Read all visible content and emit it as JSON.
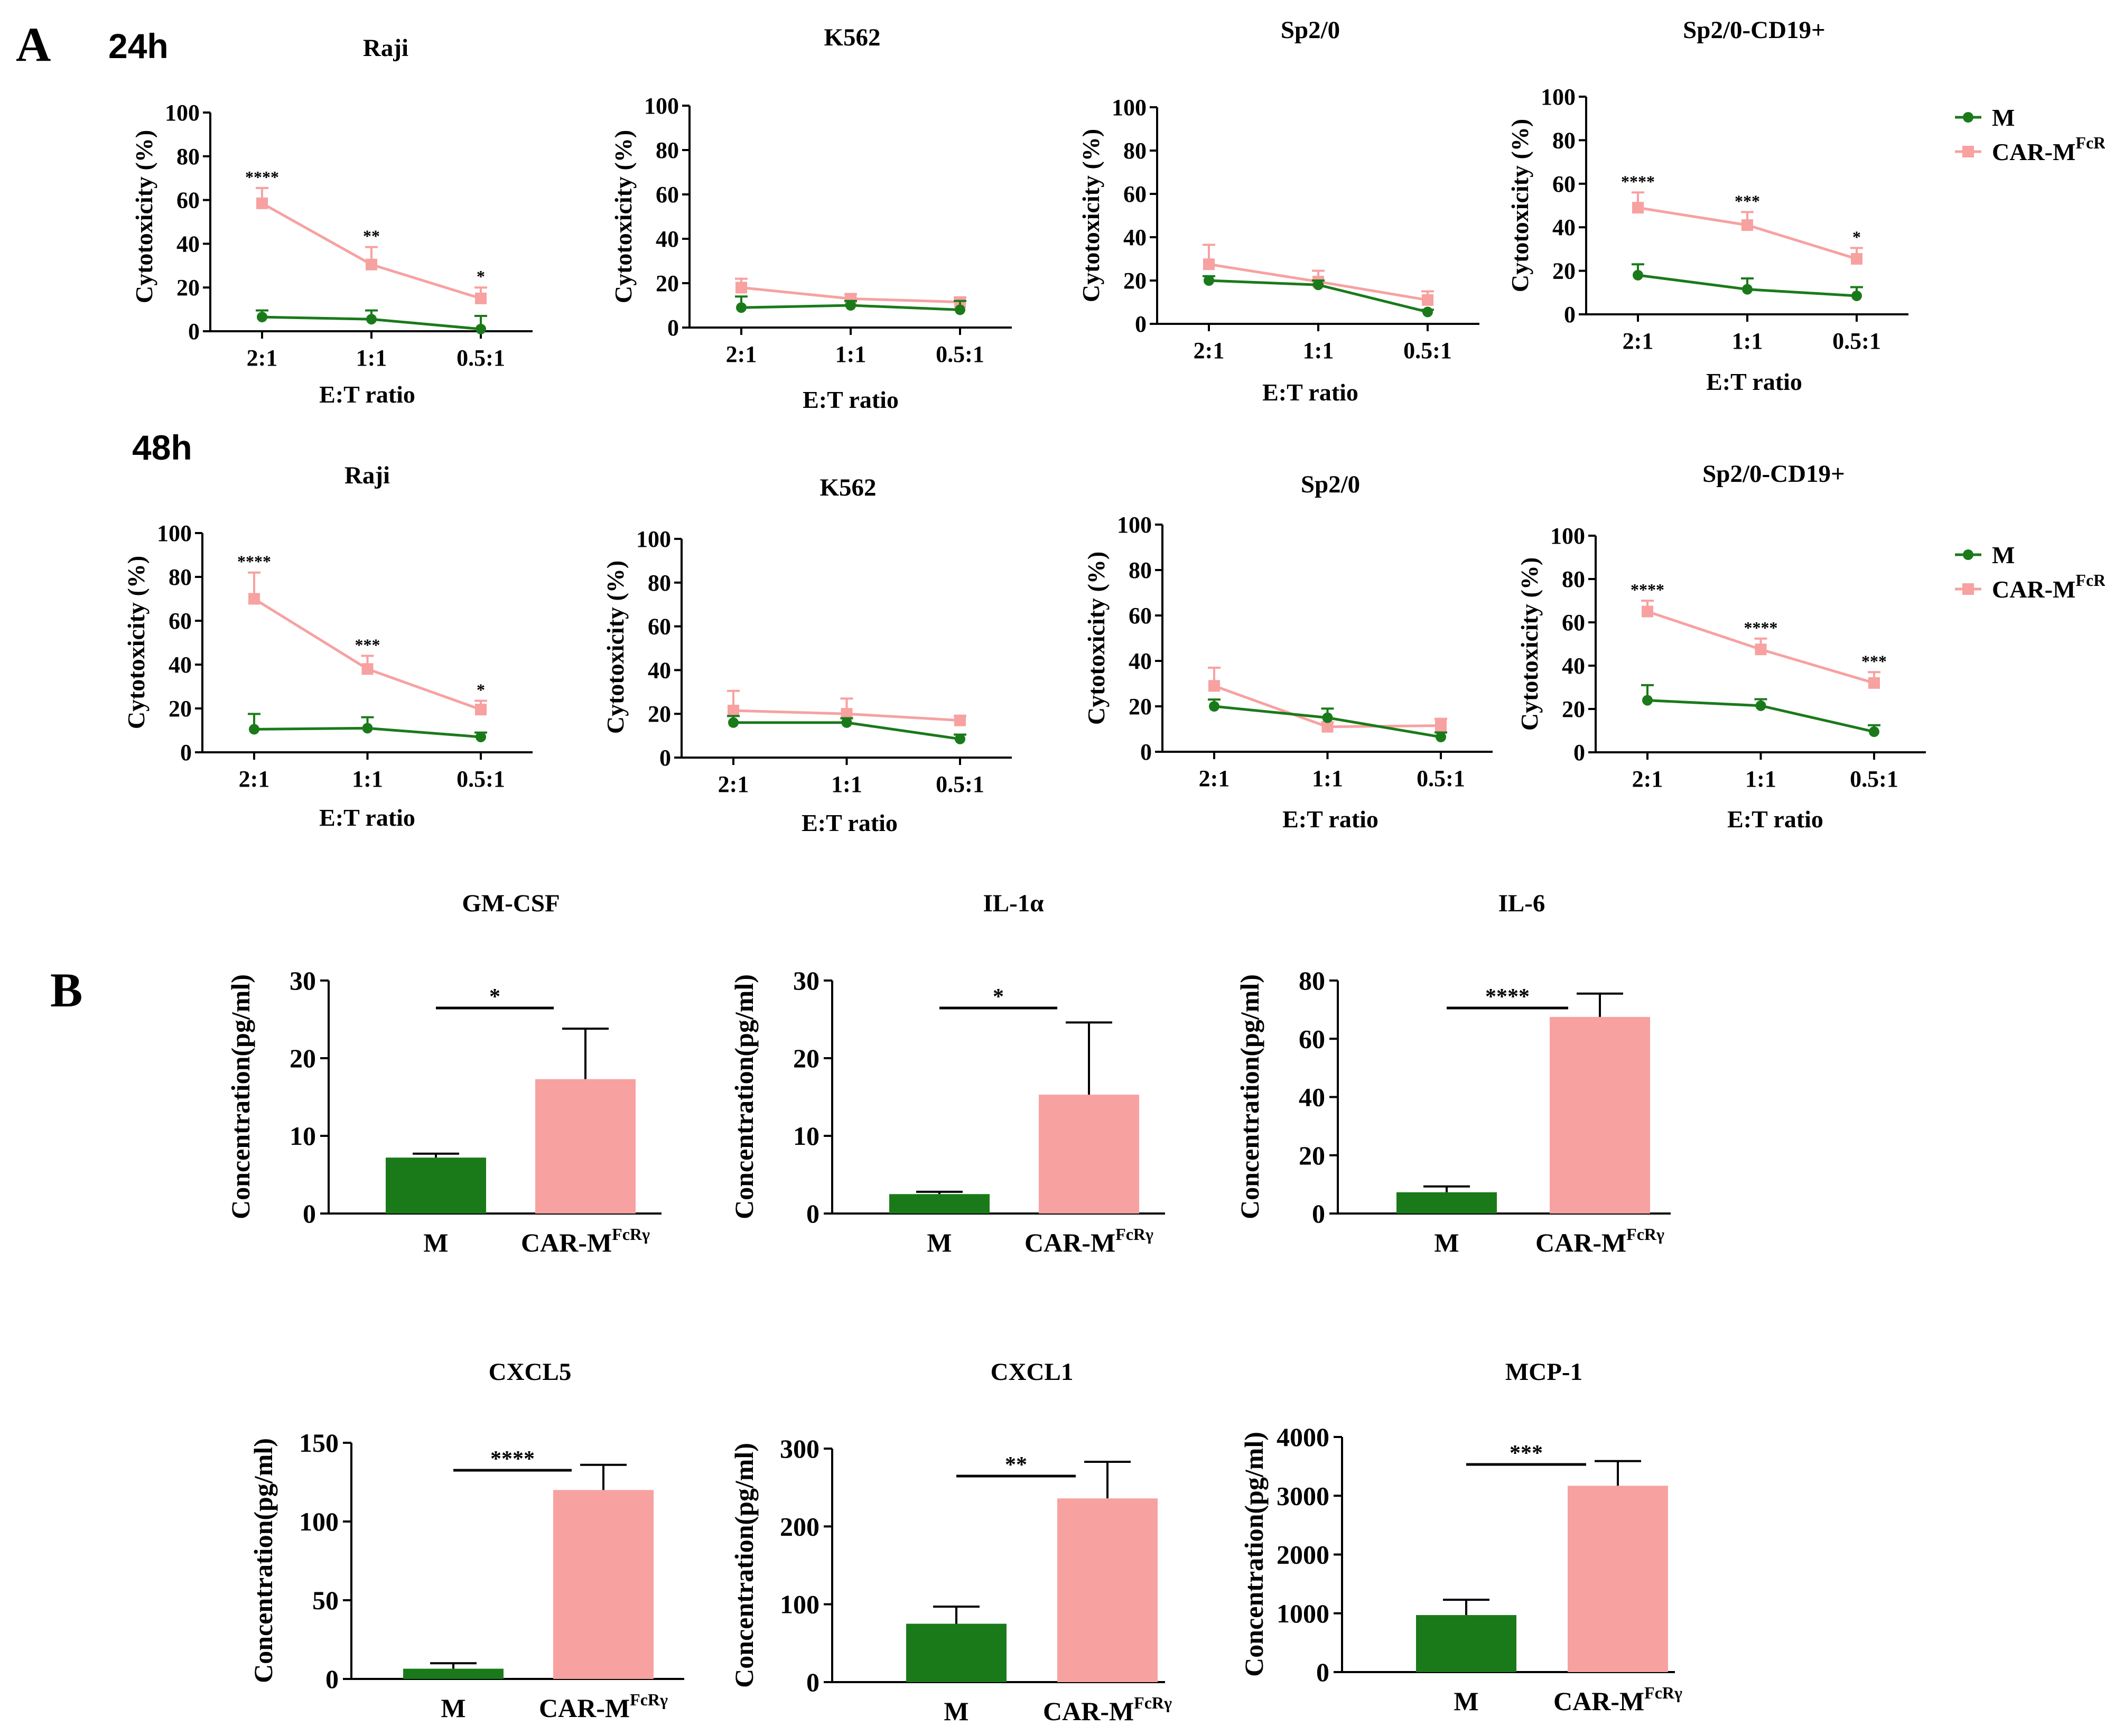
{
  "figure": {
    "panel_a_label": "A",
    "panel_b_label": "B",
    "time_24h": "24h",
    "time_48h": "48h"
  },
  "colors": {
    "M": "#1a7a1a",
    "CAR": "#f7a1a1",
    "axis": "#000000"
  },
  "legend": {
    "M": "M",
    "CAR_prefix": "CAR-M",
    "CAR_superscript": "FcRγ"
  },
  "chart_data": [
    {
      "type": "line",
      "id": "l24_raji",
      "time": "24h",
      "title": "Raji",
      "categories": [
        "2:1",
        "1:1",
        "0.5:1"
      ],
      "xlabel": "E:T ratio",
      "ylabel": "Cytotoxicity (%)",
      "ylim": [
        0,
        100
      ],
      "yticks": [
        0,
        20,
        40,
        60,
        80,
        100
      ],
      "series": [
        {
          "name": "M",
          "values": [
            6.5,
            5.5,
            1.0
          ],
          "errors": [
            3,
            4,
            6
          ]
        },
        {
          "name": "CAR-M",
          "values": [
            58.5,
            30.5,
            15.0
          ],
          "errors": [
            7,
            8,
            5
          ]
        }
      ],
      "significance": [
        "****",
        "**",
        "*"
      ],
      "legend": false
    },
    {
      "type": "line",
      "id": "l24_k562",
      "time": "24h",
      "title": "K562",
      "categories": [
        "2:1",
        "1:1",
        "0.5:1"
      ],
      "xlabel": "E:T ratio",
      "ylabel": "Cytotoxicity (%)",
      "ylim": [
        0,
        100
      ],
      "yticks": [
        0,
        20,
        40,
        60,
        80,
        100
      ],
      "series": [
        {
          "name": "M",
          "values": [
            9,
            10,
            8
          ],
          "errors": [
            5,
            2,
            4
          ]
        },
        {
          "name": "CAR-M",
          "values": [
            18,
            13,
            11.5
          ],
          "errors": [
            4,
            2,
            2
          ]
        }
      ],
      "significance": [],
      "legend": false
    },
    {
      "type": "line",
      "id": "l24_sp20",
      "time": "24h",
      "title": "Sp2/0",
      "categories": [
        "2:1",
        "1:1",
        "0.5:1"
      ],
      "xlabel": "E:T ratio",
      "ylabel": "Cytotoxicity (%)",
      "ylim": [
        0,
        100
      ],
      "yticks": [
        0,
        20,
        40,
        60,
        80,
        100
      ],
      "series": [
        {
          "name": "M",
          "values": [
            20,
            18,
            5.5
          ],
          "errors": [
            2,
            2,
            1
          ]
        },
        {
          "name": "CAR-M",
          "values": [
            27.5,
            19.5,
            11
          ],
          "errors": [
            9,
            5,
            4
          ]
        }
      ],
      "significance": [],
      "legend": false
    },
    {
      "type": "line",
      "id": "l24_sp20cd19",
      "time": "24h",
      "title": "Sp2/0-CD19+",
      "categories": [
        "2:1",
        "1:1",
        "0.5:1"
      ],
      "xlabel": "E:T ratio",
      "ylabel": "Cytotoxicity (%)",
      "ylim": [
        0,
        100
      ],
      "yticks": [
        0,
        20,
        40,
        60,
        80,
        100
      ],
      "series": [
        {
          "name": "M",
          "values": [
            18,
            11.5,
            8.5
          ],
          "errors": [
            5,
            5,
            4
          ]
        },
        {
          "name": "CAR-M",
          "values": [
            49,
            41,
            25.5
          ],
          "errors": [
            7,
            6,
            5
          ]
        }
      ],
      "significance": [
        "****",
        "***",
        "*"
      ],
      "legend": true
    },
    {
      "type": "line",
      "id": "l48_raji",
      "time": "48h",
      "title": "Raji",
      "categories": [
        "2:1",
        "1:1",
        "0.5:1"
      ],
      "xlabel": "E:T ratio",
      "ylabel": "Cytotoxicity (%)",
      "ylim": [
        0,
        100
      ],
      "yticks": [
        0,
        20,
        40,
        60,
        80,
        100
      ],
      "series": [
        {
          "name": "M",
          "values": [
            10.5,
            11,
            7
          ],
          "errors": [
            7,
            5,
            2
          ]
        },
        {
          "name": "CAR-M",
          "values": [
            70,
            38,
            19.5
          ],
          "errors": [
            12,
            6,
            4
          ]
        }
      ],
      "significance": [
        "****",
        "***",
        "*"
      ],
      "legend": false
    },
    {
      "type": "line",
      "id": "l48_k562",
      "time": "48h",
      "title": "K562",
      "categories": [
        "2:1",
        "1:1",
        "0.5:1"
      ],
      "xlabel": "E:T ratio",
      "ylabel": "Cytotoxicity (%)",
      "ylim": [
        0,
        100
      ],
      "yticks": [
        0,
        20,
        40,
        60,
        80,
        100
      ],
      "series": [
        {
          "name": "M",
          "values": [
            16,
            16,
            8.5
          ],
          "errors": [
            3,
            2,
            2
          ]
        },
        {
          "name": "CAR-M",
          "values": [
            21.5,
            20,
            17
          ],
          "errors": [
            9,
            7,
            2
          ]
        }
      ],
      "significance": [],
      "legend": false
    },
    {
      "type": "line",
      "id": "l48_sp20",
      "time": "48h",
      "title": "Sp2/0",
      "categories": [
        "2:1",
        "1:1",
        "0.5:1"
      ],
      "xlabel": "E:T ratio",
      "ylabel": "Cytotoxicity (%)",
      "ylim": [
        0,
        100
      ],
      "yticks": [
        0,
        20,
        40,
        60,
        80,
        100
      ],
      "series": [
        {
          "name": "M",
          "values": [
            20,
            15,
            6.5
          ],
          "errors": [
            3,
            4,
            2
          ]
        },
        {
          "name": "CAR-M",
          "values": [
            29,
            11,
            11.5
          ],
          "errors": [
            8,
            2,
            3
          ]
        }
      ],
      "significance": [],
      "legend": false
    },
    {
      "type": "line",
      "id": "l48_sp20cd19",
      "time": "48h",
      "title": "Sp2/0-CD19+",
      "categories": [
        "2:1",
        "1:1",
        "0.5:1"
      ],
      "xlabel": "E:T ratio",
      "ylabel": "Cytotoxicity (%)",
      "ylim": [
        0,
        100
      ],
      "yticks": [
        0,
        20,
        40,
        60,
        80,
        100
      ],
      "series": [
        {
          "name": "M",
          "values": [
            24,
            21.5,
            9.5
          ],
          "errors": [
            7,
            3,
            3
          ]
        },
        {
          "name": "CAR-M",
          "values": [
            65,
            47.5,
            32
          ],
          "errors": [
            5,
            5,
            5
          ]
        }
      ],
      "significance": [
        "****",
        "****",
        "***"
      ],
      "legend": true
    },
    {
      "type": "bar",
      "id": "b_gmcsf",
      "title": "GM-CSF",
      "categories": [
        "M",
        "CAR-M"
      ],
      "values": [
        7.2,
        17.3
      ],
      "errors": [
        0.5,
        6.5
      ],
      "ylabel": "Concentration(pg/ml)",
      "ylim": [
        0,
        30
      ],
      "yticks": [
        0,
        10,
        20,
        30
      ],
      "significance": "*"
    },
    {
      "type": "bar",
      "id": "b_il1a",
      "title": "IL-1α",
      "categories": [
        "M",
        "CAR-M"
      ],
      "values": [
        2.5,
        15.3
      ],
      "errors": [
        0.3,
        9.3
      ],
      "ylabel": "Concentration(pg/ml)",
      "ylim": [
        0,
        30
      ],
      "yticks": [
        0,
        10,
        20,
        30
      ],
      "significance": "*"
    },
    {
      "type": "bar",
      "id": "b_il6",
      "title": "IL-6",
      "categories": [
        "M",
        "CAR-M"
      ],
      "values": [
        7.3,
        67.5
      ],
      "errors": [
        2,
        8
      ],
      "ylabel": "Concentration(pg/ml)",
      "ylim": [
        0,
        80
      ],
      "yticks": [
        0,
        20,
        40,
        60,
        80
      ],
      "significance": "****"
    },
    {
      "type": "bar",
      "id": "b_cxcl5",
      "title": "CXCL5",
      "categories": [
        "M",
        "CAR-M"
      ],
      "values": [
        6.5,
        120
      ],
      "errors": [
        3.5,
        16
      ],
      "ylabel": "Concentration(pg/ml)",
      "ylim": [
        0,
        150
      ],
      "yticks": [
        0,
        50,
        100,
        150
      ],
      "significance": "****"
    },
    {
      "type": "bar",
      "id": "b_cxcl1",
      "title": "CXCL1",
      "categories": [
        "M",
        "CAR-M"
      ],
      "values": [
        75,
        236
      ],
      "errors": [
        22,
        47
      ],
      "ylabel": "Concentration(pg/ml)",
      "ylim": [
        0,
        300
      ],
      "yticks": [
        0,
        100,
        200,
        300
      ],
      "significance": "**"
    },
    {
      "type": "bar",
      "id": "b_mcp1",
      "title": "MCP-1",
      "categories": [
        "M",
        "CAR-M"
      ],
      "values": [
        970,
        3170
      ],
      "errors": [
        260,
        420
      ],
      "ylabel": "Concentration(pg/ml)",
      "ylim": [
        0,
        4000
      ],
      "yticks": [
        0,
        1000,
        2000,
        3000,
        4000
      ],
      "significance": "***"
    }
  ]
}
